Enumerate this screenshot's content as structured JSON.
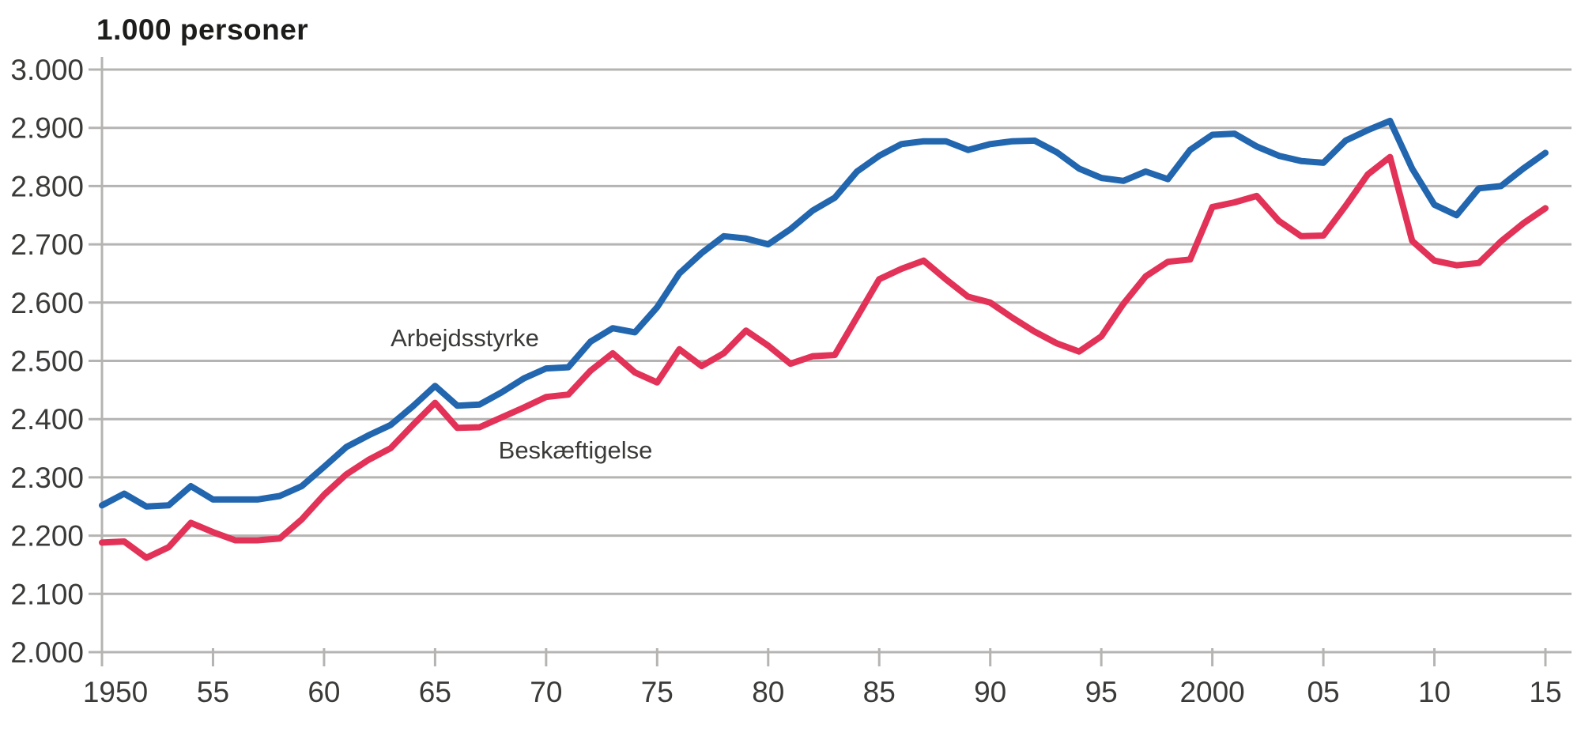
{
  "chart_data": {
    "type": "line",
    "title": "1.000 personer",
    "xlabel": "",
    "ylabel": "1.000 personer",
    "ylim": [
      2000,
      3000
    ],
    "ytick_step": 100,
    "grid": "horizontal",
    "legend_position": "inline-labels",
    "background_color": "#ffffff",
    "grid_color": "#b5b4b2",
    "axis_color": "#b5b4b2",
    "tick_text_color": "#3a3a38",
    "title_color": "#1d1d1b",
    "ytick_labels": [
      "3.000",
      "2.900",
      "2.800",
      "2.700",
      "2.600",
      "2.500",
      "2.400",
      "2.300",
      "2.200",
      "2.100",
      "2.000"
    ],
    "ytick_values": [
      3000,
      2900,
      2800,
      2700,
      2600,
      2500,
      2400,
      2300,
      2200,
      2100,
      2000
    ],
    "xtick_values": [
      1950,
      1955,
      1960,
      1965,
      1970,
      1975,
      1980,
      1985,
      1990,
      1995,
      2000,
      2005,
      2010,
      2015
    ],
    "xtick_labels": [
      "1950",
      "55",
      "60",
      "65",
      "70",
      "75",
      "80",
      "85",
      "90",
      "95",
      "2000",
      "05",
      "10",
      "15"
    ],
    "x": [
      1950,
      1951,
      1952,
      1953,
      1954,
      1955,
      1956,
      1957,
      1958,
      1959,
      1960,
      1961,
      1962,
      1963,
      1964,
      1965,
      1966,
      1967,
      1968,
      1969,
      1970,
      1971,
      1972,
      1973,
      1974,
      1975,
      1976,
      1977,
      1978,
      1979,
      1980,
      1981,
      1982,
      1983,
      1984,
      1985,
      1986,
      1987,
      1988,
      1989,
      1990,
      1991,
      1992,
      1993,
      1994,
      1995,
      1996,
      1997,
      1998,
      1999,
      2000,
      2001,
      2002,
      2003,
      2004,
      2005,
      2006,
      2007,
      2008,
      2009,
      2010,
      2011,
      2012,
      2013,
      2014,
      2015
    ],
    "series": [
      {
        "name": "Arbejdsstyrke",
        "color": "#2166ae",
        "values": [
          2252,
          2272,
          2250,
          2252,
          2285,
          2262,
          2262,
          2262,
          2268,
          2285,
          2318,
          2352,
          2372,
          2390,
          2422,
          2457,
          2423,
          2425,
          2446,
          2470,
          2487,
          2489,
          2533,
          2556,
          2549,
          2592,
          2650,
          2685,
          2714,
          2710,
          2700,
          2726,
          2758,
          2780,
          2825,
          2852,
          2872,
          2877,
          2877,
          2862,
          2872,
          2877,
          2878,
          2858,
          2830,
          2814,
          2809,
          2825,
          2812,
          2862,
          2888,
          2890,
          2868,
          2852,
          2843,
          2840,
          2878,
          2896,
          2912,
          2830,
          2768,
          2750,
          2796,
          2800,
          2830,
          2857
        ]
      },
      {
        "name": "Beskæftigelse",
        "color": "#e23257",
        "values": [
          2188,
          2190,
          2162,
          2180,
          2222,
          2206,
          2192,
          2192,
          2195,
          2228,
          2270,
          2305,
          2330,
          2350,
          2390,
          2428,
          2385,
          2386,
          2403,
          2420,
          2438,
          2442,
          2483,
          2513,
          2480,
          2463,
          2520,
          2491,
          2513,
          2552,
          2526,
          2495,
          2508,
          2510,
          2575,
          2640,
          2658,
          2672,
          2640,
          2610,
          2600,
          2574,
          2550,
          2530,
          2516,
          2542,
          2598,
          2645,
          2670,
          2674,
          2764,
          2772,
          2783,
          2740,
          2714,
          2715,
          2766,
          2820,
          2850,
          2706,
          2672,
          2664,
          2668,
          2705,
          2736,
          2762
        ]
      }
    ],
    "annotations": [
      {
        "text": "Arbejdsstyrke",
        "target_series": 0
      },
      {
        "text": "Beskæftigelse",
        "target_series": 1
      }
    ]
  }
}
